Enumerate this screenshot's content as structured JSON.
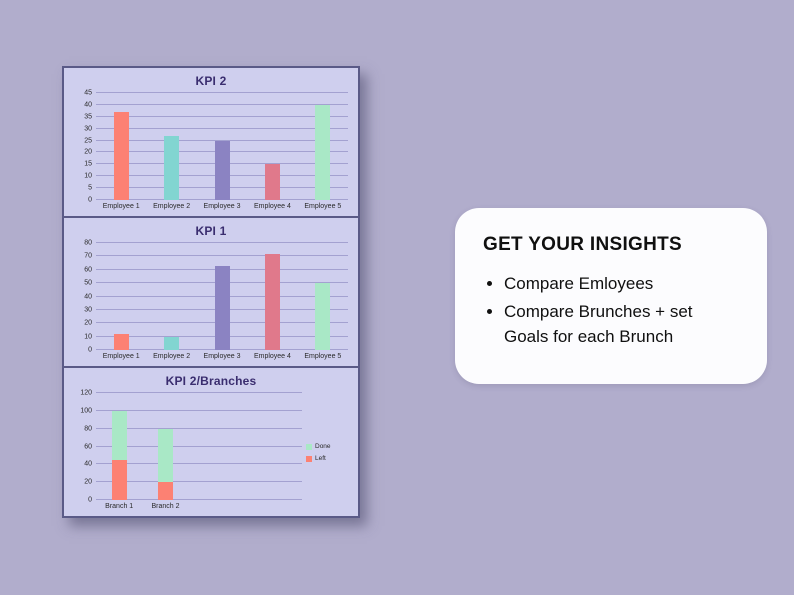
{
  "insights": {
    "title": "GET YOUR INSIGHTS",
    "bullets": [
      "Compare Emloyees",
      "Compare Brunches + set Goals for each Brunch"
    ]
  },
  "colors": {
    "page_background": "#b1adcc",
    "panel_background": "#cfcfee",
    "panel_border": "#5a5a87",
    "gridline": "#a3a1d0",
    "title_text": "#3a2d6f",
    "card_background": "#fcfcfe"
  },
  "chart_data": [
    {
      "type": "bar",
      "title": "KPI 2",
      "categories": [
        "Employee 1",
        "Employee 2",
        "Employee 3",
        "Employee 4",
        "Employee 5"
      ],
      "values": [
        37,
        27,
        25,
        15,
        40
      ],
      "colors": [
        "#fc8173",
        "#82d5d1",
        "#8b83c2",
        "#e0798b",
        "#a9e8c6"
      ],
      "xlabel": "",
      "ylabel": "",
      "ylim": [
        0,
        45
      ],
      "ytick_step": 5,
      "grid": true,
      "legend": null
    },
    {
      "type": "bar",
      "title": "KPI 1",
      "categories": [
        "Employee 1",
        "Employee 2",
        "Employee 3",
        "Employee 4",
        "Employee 5"
      ],
      "values": [
        12,
        10,
        63,
        72,
        50
      ],
      "colors": [
        "#fc8173",
        "#82d5d1",
        "#8b83c2",
        "#e0798b",
        "#a9e8c6"
      ],
      "xlabel": "",
      "ylabel": "",
      "ylim": [
        0,
        80
      ],
      "ytick_step": 10,
      "grid": true,
      "legend": null
    },
    {
      "type": "bar",
      "subtype": "stacked",
      "title": "KPI 2/Branches",
      "categories": [
        "Branch 1",
        "Branch 2"
      ],
      "series": [
        {
          "name": "Left",
          "color": "#fc8173",
          "values": [
            45,
            20
          ]
        },
        {
          "name": "Done",
          "color": "#a9e8c6",
          "values": [
            55,
            60
          ]
        }
      ],
      "legend": [
        {
          "label": "Done",
          "color": "#a9e8c6"
        },
        {
          "label": "Left",
          "color": "#fc8173"
        }
      ],
      "legend_position": "right",
      "xlabel": "",
      "ylabel": "",
      "ylim": [
        0,
        120
      ],
      "ytick_step": 20,
      "grid": true,
      "plot_fraction": 0.45
    }
  ]
}
